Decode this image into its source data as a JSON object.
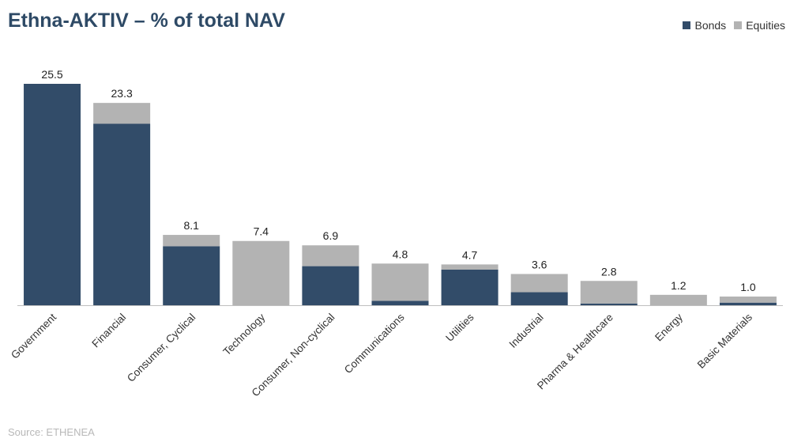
{
  "title": "Ethna-AKTIV – % of total NAV",
  "source": "Source: ETHENEA",
  "legend": {
    "bonds": "Bonds",
    "equities": "Equities"
  },
  "colors": {
    "bonds": "#324c69",
    "equities": "#b3b3b3",
    "title": "#2e4a66",
    "axis": "#bfbfbf"
  },
  "chart_data": {
    "type": "bar",
    "stacked": true,
    "title": "Ethna-AKTIV – % of total NAV",
    "xlabel": "",
    "ylabel": "",
    "ylim": [
      0,
      25.5
    ],
    "grid": false,
    "legend_position": "top-right",
    "categories": [
      "Government",
      "Financial",
      "Consumer, Cyclical",
      "Technology",
      "Consumer, Non-cyclical",
      "Communications",
      "Utilities",
      "Industrial",
      "Pharma & Healthcare",
      "Energy",
      "Basic Materials"
    ],
    "series": [
      {
        "name": "Bonds",
        "values": [
          25.5,
          20.9,
          6.8,
          0.0,
          4.5,
          0.5,
          4.1,
          1.5,
          0.2,
          0.0,
          0.3
        ]
      },
      {
        "name": "Equities",
        "values": [
          0.0,
          2.4,
          1.3,
          7.4,
          2.4,
          4.3,
          0.6,
          2.1,
          2.6,
          1.2,
          0.7
        ]
      }
    ],
    "totals": [
      "25.5",
      "23.3",
      "8.1",
      "7.4",
      "6.9",
      "4.8",
      "4.7",
      "3.6",
      "2.8",
      "1.2",
      "1.0"
    ]
  }
}
